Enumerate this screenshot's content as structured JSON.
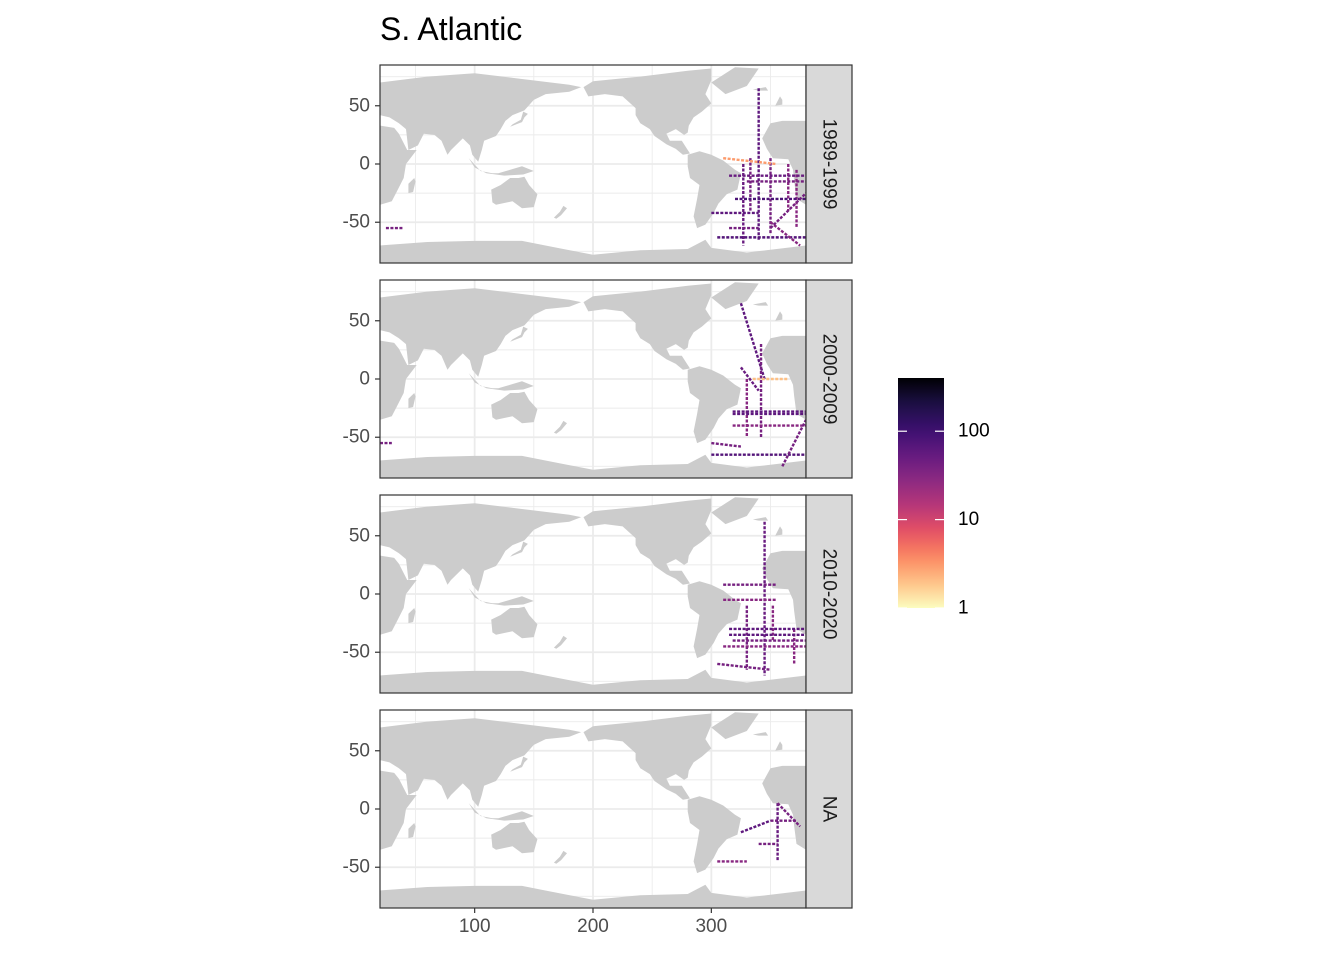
{
  "title": "S. Atlantic",
  "chart_data": {
    "type": "heatmap",
    "title": "S. Atlantic",
    "xlabel": "",
    "ylabel": "",
    "xlim": [
      20,
      380
    ],
    "ylim": [
      -85,
      85
    ],
    "x_ticks": [
      100,
      200,
      300
    ],
    "y_ticks": [
      50,
      0,
      -50
    ],
    "facets": [
      "1989-1999",
      "2000-2009",
      "2010-2020",
      "NA"
    ],
    "color_scale": {
      "type": "log10",
      "palette": "magma",
      "range": [
        1,
        400
      ],
      "breaks": [
        1,
        10,
        100
      ],
      "break_labels": [
        "1",
        "10",
        "100"
      ],
      "colors": [
        "#fcfdbf",
        "#fec287",
        "#fb8861",
        "#e65164",
        "#b73779",
        "#8c2981",
        "#641a80",
        "#3b0f70",
        "#1c1044",
        "#000004"
      ]
    },
    "land_color": "#cccccc",
    "grid": true,
    "legend_position": "right",
    "panels": [
      {
        "facet": "1989-1999",
        "tracks": [
          {
            "lon": [
              340,
              340
            ],
            "lat": [
              65,
              -65
            ],
            "value": 60
          },
          {
            "lon": [
              333,
              333
            ],
            "lat": [
              5,
              -40
            ],
            "value": 40
          },
          {
            "lon": [
              327,
              327
            ],
            "lat": [
              0,
              -70
            ],
            "value": 50
          },
          {
            "lon": [
              350,
              350
            ],
            "lat": [
              5,
              -60
            ],
            "value": 40
          },
          {
            "lon": [
              365,
              365
            ],
            "lat": [
              0,
              -40
            ],
            "value": 30
          },
          {
            "lon": [
              372,
              372
            ],
            "lat": [
              -5,
              -55
            ],
            "value": 30
          },
          {
            "lon": [
              320,
              380
            ],
            "lat": [
              -30,
              -30
            ],
            "value": 80
          },
          {
            "lon": [
              315,
              380
            ],
            "lat": [
              -10,
              -10
            ],
            "value": 50
          },
          {
            "lon": [
              330,
              380
            ],
            "lat": [
              -15,
              -15
            ],
            "value": 40
          },
          {
            "lon": [
              305,
              380
            ],
            "lat": [
              -63,
              -63
            ],
            "value": 70
          },
          {
            "lon": [
              300,
              340
            ],
            "lat": [
              -42,
              -42
            ],
            "value": 60
          },
          {
            "lon": [
              315,
              340
            ],
            "lat": [
              -55,
              -55
            ],
            "value": 40
          },
          {
            "lon": [
              350,
              375
            ],
            "lat": [
              -50,
              -70
            ],
            "value": 30
          },
          {
            "lon": [
              310,
              355
            ],
            "lat": [
              5,
              0
            ],
            "value": 3
          },
          {
            "lon": [
              25,
              40
            ],
            "lat": [
              -55,
              -55
            ],
            "value": 40
          },
          {
            "lon": [
              350,
              380
            ],
            "lat": [
              -55,
              -25
            ],
            "value": 40
          }
        ]
      },
      {
        "facet": "2000-2009",
        "tracks": [
          {
            "lon": [
              325,
              345
            ],
            "lat": [
              65,
              0
            ],
            "value": 60
          },
          {
            "lon": [
              342,
              342
            ],
            "lat": [
              30,
              -50
            ],
            "value": 40
          },
          {
            "lon": [
              330,
              330
            ],
            "lat": [
              0,
              -50
            ],
            "value": 30
          },
          {
            "lon": [
              318,
              380
            ],
            "lat": [
              -28,
              -28
            ],
            "value": 60
          },
          {
            "lon": [
              318,
              380
            ],
            "lat": [
              -30,
              -30
            ],
            "value": 60
          },
          {
            "lon": [
              318,
              380
            ],
            "lat": [
              -40,
              -40
            ],
            "value": 30
          },
          {
            "lon": [
              300,
              380
            ],
            "lat": [
              -65,
              -65
            ],
            "value": 70
          },
          {
            "lon": [
              300,
              325
            ],
            "lat": [
              -55,
              -58
            ],
            "value": 40
          },
          {
            "lon": [
              360,
              380
            ],
            "lat": [
              -75,
              -35
            ],
            "value": 40
          },
          {
            "lon": [
              335,
              365
            ],
            "lat": [
              0,
              0
            ],
            "value": 2
          },
          {
            "lon": [
              325,
              340
            ],
            "lat": [
              10,
              -10
            ],
            "value": 50
          },
          {
            "lon": [
              20,
              30
            ],
            "lat": [
              -55,
              -55
            ],
            "value": 40
          }
        ]
      },
      {
        "facet": "2010-2020",
        "tracks": [
          {
            "lon": [
              345,
              345
            ],
            "lat": [
              62,
              -70
            ],
            "value": 50
          },
          {
            "lon": [
              330,
              330
            ],
            "lat": [
              -10,
              -65
            ],
            "value": 40
          },
          {
            "lon": [
              352,
              352
            ],
            "lat": [
              -10,
              -40
            ],
            "value": 30
          },
          {
            "lon": [
              370,
              370
            ],
            "lat": [
              -30,
              -60
            ],
            "value": 30
          },
          {
            "lon": [
              315,
              380
            ],
            "lat": [
              -30,
              -30
            ],
            "value": 60
          },
          {
            "lon": [
              315,
              380
            ],
            "lat": [
              -35,
              -35
            ],
            "value": 60
          },
          {
            "lon": [
              318,
              380
            ],
            "lat": [
              -40,
              -40
            ],
            "value": 40
          },
          {
            "lon": [
              310,
              380
            ],
            "lat": [
              -45,
              -45
            ],
            "value": 30
          },
          {
            "lon": [
              305,
              350
            ],
            "lat": [
              -60,
              -65
            ],
            "value": 40
          },
          {
            "lon": [
              310,
              355
            ],
            "lat": [
              8,
              8
            ],
            "value": 40
          },
          {
            "lon": [
              310,
              355
            ],
            "lat": [
              -5,
              -5
            ],
            "value": 30
          }
        ]
      },
      {
        "facet": "NA",
        "tracks": [
          {
            "lon": [
              325,
              350
            ],
            "lat": [
              -20,
              -10
            ],
            "value": 60
          },
          {
            "lon": [
              350,
              372
            ],
            "lat": [
              -10,
              -10
            ],
            "value": 40
          },
          {
            "lon": [
              356,
              356
            ],
            "lat": [
              5,
              -45
            ],
            "value": 50
          },
          {
            "lon": [
              340,
              356
            ],
            "lat": [
              -30,
              -30
            ],
            "value": 40
          },
          {
            "lon": [
              356,
              375
            ],
            "lat": [
              5,
              -15
            ],
            "value": 40
          },
          {
            "lon": [
              305,
              330
            ],
            "lat": [
              -45,
              -45
            ],
            "value": 30
          }
        ]
      }
    ]
  }
}
